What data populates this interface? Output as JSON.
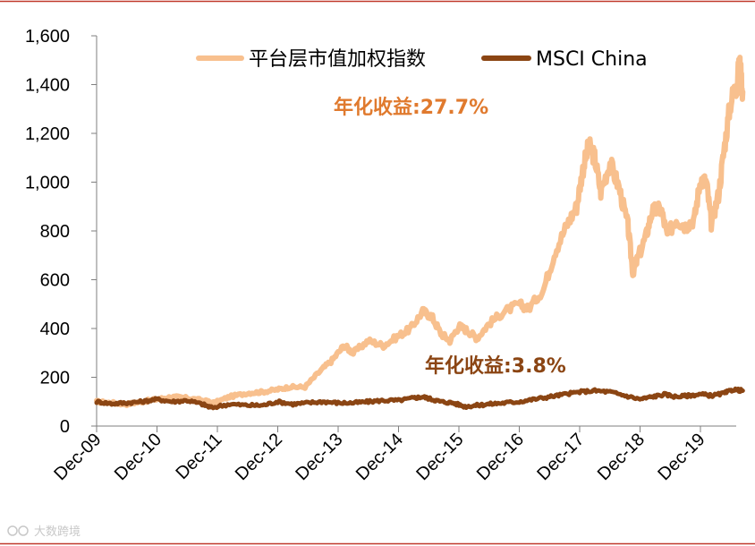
{
  "chart_data": {
    "type": "line",
    "title": "",
    "xlabel": "",
    "ylabel": "",
    "ylim": [
      0,
      1600
    ],
    "yticks": [
      0,
      200,
      400,
      600,
      800,
      1000,
      1200,
      1400,
      1600
    ],
    "ytick_labels": [
      "0",
      "200",
      "400",
      "600",
      "800",
      "1,000",
      "1,200",
      "1,400",
      "1,600"
    ],
    "xlim": [
      0,
      10.8
    ],
    "xtick_labels": [
      "Dec-09",
      "Dec-10",
      "Dec-11",
      "Dec-12",
      "Dec-13",
      "Dec-14",
      "Dec-15",
      "Dec-16",
      "Dec-17",
      "Dec-18",
      "Dec-19"
    ],
    "xtick_positions": [
      0,
      1,
      2,
      3,
      4,
      5,
      6,
      7,
      8,
      9,
      10
    ],
    "legend_position": "top",
    "series": [
      {
        "name": "平台层市值加权指数",
        "color": "#f8c08e",
        "annotation": "年化收益:27.7%",
        "points": [
          [
            0.0,
            100
          ],
          [
            0.25,
            95
          ],
          [
            0.5,
            90
          ],
          [
            0.75,
            100
          ],
          [
            1.0,
            110
          ],
          [
            1.25,
            120
          ],
          [
            1.5,
            115
          ],
          [
            1.75,
            105
          ],
          [
            1.95,
            95
          ],
          [
            2.2,
            120
          ],
          [
            2.5,
            135
          ],
          [
            2.75,
            140
          ],
          [
            3.0,
            150
          ],
          [
            3.2,
            160
          ],
          [
            3.45,
            160
          ],
          [
            3.7,
            225
          ],
          [
            3.9,
            270
          ],
          [
            4.1,
            330
          ],
          [
            4.25,
            300
          ],
          [
            4.5,
            350
          ],
          [
            4.75,
            330
          ],
          [
            5.0,
            370
          ],
          [
            5.2,
            400
          ],
          [
            5.4,
            470
          ],
          [
            5.55,
            450
          ],
          [
            5.7,
            380
          ],
          [
            5.85,
            350
          ],
          [
            6.0,
            410
          ],
          [
            6.15,
            390
          ],
          [
            6.3,
            360
          ],
          [
            6.5,
            420
          ],
          [
            6.75,
            470
          ],
          [
            7.0,
            500
          ],
          [
            7.15,
            480
          ],
          [
            7.4,
            560
          ],
          [
            7.6,
            720
          ],
          [
            7.8,
            830
          ],
          [
            7.95,
            900
          ],
          [
            8.05,
            1050
          ],
          [
            8.15,
            1150
          ],
          [
            8.25,
            1100
          ],
          [
            8.35,
            960
          ],
          [
            8.5,
            1080
          ],
          [
            8.65,
            980
          ],
          [
            8.8,
            820
          ],
          [
            8.88,
            630
          ],
          [
            8.95,
            680
          ],
          [
            9.1,
            780
          ],
          [
            9.2,
            880
          ],
          [
            9.35,
            890
          ],
          [
            9.45,
            780
          ],
          [
            9.6,
            850
          ],
          [
            9.75,
            820
          ],
          [
            9.9,
            850
          ],
          [
            10.0,
            1010
          ],
          [
            10.1,
            1000
          ],
          [
            10.18,
            830
          ],
          [
            10.3,
            950
          ],
          [
            10.4,
            1150
          ],
          [
            10.5,
            1330
          ],
          [
            10.6,
            1400
          ],
          [
            10.65,
            1490
          ],
          [
            10.7,
            1370
          ]
        ]
      },
      {
        "name": "MSCI China",
        "color": "#8b4513",
        "annotation": "年化收益:3.8%",
        "points": [
          [
            0.0,
            100
          ],
          [
            0.25,
            92
          ],
          [
            0.5,
            95
          ],
          [
            0.75,
            100
          ],
          [
            1.0,
            110
          ],
          [
            1.25,
            100
          ],
          [
            1.5,
            105
          ],
          [
            1.75,
            90
          ],
          [
            1.9,
            75
          ],
          [
            2.2,
            90
          ],
          [
            2.5,
            85
          ],
          [
            2.75,
            85
          ],
          [
            3.0,
            100
          ],
          [
            3.25,
            90
          ],
          [
            3.5,
            95
          ],
          [
            3.75,
            100
          ],
          [
            4.0,
            95
          ],
          [
            4.25,
            95
          ],
          [
            4.5,
            100
          ],
          [
            4.75,
            105
          ],
          [
            5.0,
            105
          ],
          [
            5.25,
            115
          ],
          [
            5.4,
            120
          ],
          [
            5.55,
            110
          ],
          [
            5.7,
            100
          ],
          [
            5.9,
            95
          ],
          [
            6.1,
            80
          ],
          [
            6.3,
            85
          ],
          [
            6.5,
            90
          ],
          [
            6.75,
            95
          ],
          [
            7.0,
            100
          ],
          [
            7.25,
            110
          ],
          [
            7.5,
            120
          ],
          [
            7.75,
            130
          ],
          [
            8.0,
            140
          ],
          [
            8.25,
            145
          ],
          [
            8.5,
            140
          ],
          [
            8.75,
            125
          ],
          [
            9.0,
            110
          ],
          [
            9.2,
            120
          ],
          [
            9.4,
            130
          ],
          [
            9.6,
            120
          ],
          [
            9.8,
            125
          ],
          [
            10.0,
            130
          ],
          [
            10.2,
            125
          ],
          [
            10.4,
            135
          ],
          [
            10.55,
            150
          ],
          [
            10.7,
            145
          ]
        ]
      }
    ]
  },
  "watermark": "大数跨境"
}
